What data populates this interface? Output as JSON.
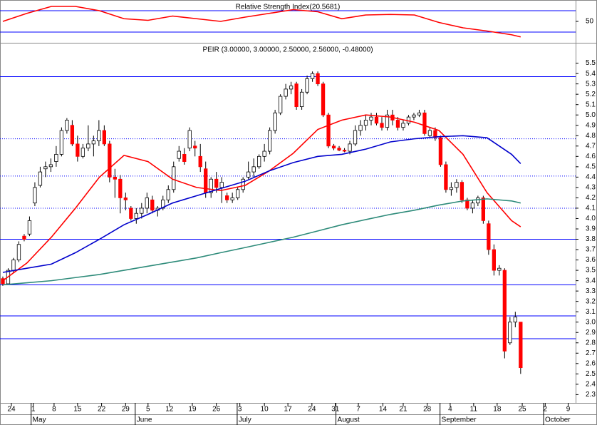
{
  "chart_data": [
    {
      "type": "line",
      "title": "Relative Strength Index(20.5681)",
      "xlim": [
        -0.53,
        107.3
      ],
      "ylim": [
        10,
        90
      ],
      "yticks": [
        50
      ],
      "hlines": [
        {
          "value": 70,
          "style": "solid",
          "color": "#0000ff"
        },
        {
          "value": 30,
          "style": "solid",
          "color": "#0000ff"
        }
      ],
      "series": [
        {
          "color": "#ff0000",
          "x": [
            0,
            4.5,
            9.1,
            13.6,
            18.1,
            22.7,
            27.2,
            31.8,
            36.3,
            40.8,
            45.4,
            49.9,
            54.4,
            59.0,
            63.5,
            68.0,
            72.6,
            77.1,
            81.7,
            86.2,
            90.7,
            95.3,
            97.0
          ],
          "values": [
            50,
            65,
            78,
            78,
            70,
            55,
            52,
            60,
            55,
            50,
            58,
            65,
            72,
            68,
            55,
            62,
            63,
            62,
            48,
            38,
            32,
            25,
            21
          ]
        }
      ]
    },
    {
      "type": "candlestick",
      "title": "PEIR (3.00000, 3.00000, 2.50000, 2.56000, -0.48000)",
      "up_color": "#ffffff",
      "down_color": "#ff0000",
      "xlim": [
        -0.53,
        107.3
      ],
      "ylim": [
        2.22,
        5.69
      ],
      "yticks": [
        5.5,
        5.4,
        5.3,
        5.2,
        5.1,
        {
          "value": 5.0,
          "label": "5.0"
        },
        4.9,
        4.8,
        4.7,
        4.6,
        4.5,
        4.4,
        4.3,
        4.2,
        4.1,
        {
          "value": 4.0,
          "label": "4.0"
        },
        3.9,
        3.8,
        3.7,
        3.6,
        3.5,
        3.4,
        3.3,
        3.2,
        3.1,
        {
          "value": 3.0,
          "label": "3.0"
        },
        2.9,
        2.8,
        2.7,
        2.6,
        2.5,
        2.4,
        2.3
      ],
      "xticks": [
        {
          "value": 1.6,
          "label": "24"
        },
        {
          "value": 5.7,
          "label": "1"
        },
        {
          "value": 9.6,
          "label": "8"
        },
        {
          "value": 14.0,
          "label": "15"
        },
        {
          "value": 18.5,
          "label": "22"
        },
        {
          "value": 23.0,
          "label": "29"
        },
        {
          "value": 27.2,
          "label": "5"
        },
        {
          "value": 31.2,
          "label": "12"
        },
        {
          "value": 35.5,
          "label": "19"
        },
        {
          "value": 40.0,
          "label": "26"
        },
        {
          "value": 44.4,
          "label": "3"
        },
        {
          "value": 49.0,
          "label": "10"
        },
        {
          "value": 53.4,
          "label": "17"
        },
        {
          "value": 57.9,
          "label": "24"
        },
        {
          "value": 62.3,
          "label": "31"
        },
        {
          "value": 66.6,
          "label": "7"
        },
        {
          "value": 71.2,
          "label": "14"
        },
        {
          "value": 75.0,
          "label": "21"
        },
        {
          "value": 79.5,
          "label": "28"
        },
        {
          "value": 83.8,
          "label": "4"
        },
        {
          "value": 88.2,
          "label": "11"
        },
        {
          "value": 92.6,
          "label": "18"
        },
        {
          "value": 97.3,
          "label": "25"
        },
        {
          "value": 101.6,
          "label": "2"
        },
        {
          "value": 105.9,
          "label": "9"
        }
      ],
      "months": [
        {
          "value": 5.3,
          "label": "May"
        },
        {
          "value": 24.8,
          "label": "June"
        },
        {
          "value": 43.9,
          "label": "July"
        },
        {
          "value": 62.4,
          "label": "August"
        },
        {
          "value": 81.9,
          "label": "September"
        },
        {
          "value": 101.3,
          "label": "October"
        }
      ],
      "hlines": [
        {
          "value": 5.37,
          "style": "solid",
          "color": "#0000ff"
        },
        {
          "value": 4.77,
          "style": "dotted",
          "color": "#0000ff"
        },
        {
          "value": 4.41,
          "style": "dotted",
          "color": "#0000ff"
        },
        {
          "value": 4.1,
          "style": "dotted",
          "color": "#0000ff"
        },
        {
          "value": 3.8,
          "style": "solid",
          "color": "#0000ff"
        },
        {
          "value": 3.36,
          "style": "solid",
          "color": "#0000ff"
        },
        {
          "value": 3.06,
          "style": "solid",
          "color": "#0000ff"
        },
        {
          "value": 2.84,
          "style": "solid",
          "color": "#0000ff"
        }
      ],
      "ohlc": [
        [
          3.42,
          3.44,
          3.35,
          3.37
        ],
        [
          3.37,
          3.52,
          3.36,
          3.5
        ],
        [
          3.5,
          3.62,
          3.48,
          3.6
        ],
        [
          3.6,
          3.78,
          3.58,
          3.75
        ],
        [
          3.83,
          3.85,
          3.78,
          3.8
        ],
        [
          3.85,
          4.02,
          3.83,
          3.98
        ],
        [
          4.15,
          4.35,
          4.12,
          4.3
        ],
        [
          4.32,
          4.5,
          4.3,
          4.45
        ],
        [
          4.48,
          4.55,
          4.4,
          4.5
        ],
        [
          4.5,
          4.58,
          4.45,
          4.52
        ],
        [
          4.55,
          4.7,
          4.5,
          4.62
        ],
        [
          4.62,
          4.88,
          4.6,
          4.85
        ],
        [
          4.85,
          4.97,
          4.82,
          4.95
        ],
        [
          4.9,
          4.95,
          4.7,
          4.72
        ],
        [
          4.72,
          4.8,
          4.55,
          4.6
        ],
        [
          4.6,
          4.72,
          4.58,
          4.68
        ],
        [
          4.68,
          4.9,
          4.65,
          4.72
        ],
        [
          4.72,
          4.8,
          4.6,
          4.75
        ],
        [
          4.75,
          4.95,
          4.7,
          4.85
        ],
        [
          4.85,
          4.9,
          4.7,
          4.72
        ],
        [
          4.72,
          4.75,
          4.35,
          4.4
        ],
        [
          4.4,
          4.48,
          4.2,
          4.38
        ],
        [
          4.38,
          4.42,
          4.05,
          4.2
        ],
        [
          4.2,
          4.25,
          4.08,
          4.18
        ],
        [
          4.1,
          4.12,
          3.98,
          4.0
        ],
        [
          4.0,
          4.1,
          3.95,
          4.05
        ],
        [
          4.05,
          4.15,
          4.0,
          4.1
        ],
        [
          4.1,
          4.25,
          4.05,
          4.2
        ],
        [
          4.18,
          4.22,
          4.05,
          4.08
        ],
        [
          4.08,
          4.12,
          4.02,
          4.1
        ],
        [
          4.1,
          4.22,
          4.08,
          4.18
        ],
        [
          4.18,
          4.32,
          4.15,
          4.28
        ],
        [
          4.28,
          4.55,
          4.25,
          4.5
        ],
        [
          4.58,
          4.7,
          4.55,
          4.65
        ],
        [
          4.62,
          4.68,
          4.52,
          4.55
        ],
        [
          4.68,
          4.88,
          4.65,
          4.85
        ],
        [
          4.7,
          4.75,
          4.6,
          4.68
        ],
        [
          4.6,
          4.72,
          4.45,
          4.5
        ],
        [
          4.48,
          4.55,
          4.2,
          4.25
        ],
        [
          4.25,
          4.4,
          4.2,
          4.38
        ],
        [
          4.38,
          4.45,
          4.25,
          4.3
        ],
        [
          4.3,
          4.4,
          4.15,
          4.35
        ],
        [
          4.22,
          4.25,
          4.15,
          4.18
        ],
        [
          4.18,
          4.25,
          4.15,
          4.2
        ],
        [
          4.2,
          4.3,
          4.18,
          4.28
        ],
        [
          4.28,
          4.4,
          4.25,
          4.38
        ],
        [
          4.4,
          4.55,
          4.38,
          4.45
        ],
        [
          4.45,
          4.58,
          4.4,
          4.5
        ],
        [
          4.5,
          4.62,
          4.48,
          4.6
        ],
        [
          4.6,
          4.72,
          4.55,
          4.65
        ],
        [
          4.65,
          4.88,
          4.62,
          4.85
        ],
        [
          4.85,
          5.05,
          4.82,
          5.02
        ],
        [
          5.02,
          5.2,
          5.0,
          5.18
        ],
        [
          5.18,
          5.3,
          5.15,
          5.25
        ],
        [
          5.25,
          5.32,
          5.2,
          5.28
        ],
        [
          5.3,
          5.32,
          5.05,
          5.08
        ],
        [
          5.08,
          5.25,
          5.05,
          5.22
        ],
        [
          5.22,
          5.38,
          5.2,
          5.35
        ],
        [
          5.35,
          5.42,
          5.32,
          5.4
        ],
        [
          5.4,
          5.42,
          5.28,
          5.3
        ],
        [
          5.3,
          5.32,
          4.98,
          5.0
        ],
        [
          5.0,
          5.02,
          4.68,
          4.7
        ],
        [
          4.7,
          4.72,
          4.66,
          4.68
        ],
        [
          4.68,
          4.7,
          4.65,
          4.66
        ],
        [
          4.66,
          4.68,
          4.64,
          4.65
        ],
        [
          4.65,
          4.75,
          4.62,
          4.72
        ],
        [
          4.72,
          4.9,
          4.7,
          4.85
        ],
        [
          4.85,
          4.95,
          4.8,
          4.9
        ],
        [
          4.9,
          5.0,
          4.85,
          4.95
        ],
        [
          4.95,
          5.02,
          4.9,
          4.98
        ],
        [
          4.98,
          5.02,
          4.9,
          4.92
        ],
        [
          4.92,
          4.98,
          4.85,
          4.88
        ],
        [
          4.88,
          5.05,
          4.85,
          5.0
        ],
        [
          5.0,
          5.05,
          4.9,
          4.95
        ],
        [
          4.95,
          4.98,
          4.85,
          4.88
        ],
        [
          4.88,
          4.95,
          4.85,
          4.92
        ],
        [
          4.92,
          5.0,
          4.9,
          4.98
        ],
        [
          4.98,
          5.02,
          4.95,
          5.0
        ],
        [
          5.0,
          5.05,
          4.98,
          5.02
        ],
        [
          5.02,
          5.05,
          4.8,
          4.82
        ],
        [
          4.8,
          4.88,
          4.78,
          4.85
        ],
        [
          4.85,
          4.88,
          4.75,
          4.78
        ],
        [
          4.78,
          4.8,
          4.5,
          4.52
        ],
        [
          4.52,
          4.55,
          4.25,
          4.28
        ],
        [
          4.28,
          4.35,
          4.22,
          4.3
        ],
        [
          4.3,
          4.38,
          4.25,
          4.35
        ],
        [
          4.35,
          4.37,
          4.15,
          4.18
        ],
        [
          4.18,
          4.2,
          4.08,
          4.1
        ],
        [
          4.1,
          4.18,
          4.05,
          4.15
        ],
        [
          4.15,
          4.22,
          4.12,
          4.2
        ],
        [
          4.2,
          4.22,
          3.95,
          3.98
        ],
        [
          3.95,
          3.98,
          3.65,
          3.7
        ],
        [
          3.7,
          3.75,
          3.45,
          3.5
        ],
        [
          3.5,
          3.55,
          3.45,
          3.52
        ],
        [
          3.5,
          3.52,
          2.65,
          2.72
        ],
        [
          2.8,
          3.05,
          2.78,
          3.0
        ],
        [
          3.0,
          3.1,
          2.95,
          3.05
        ],
        [
          3.0,
          3.0,
          2.5,
          2.56
        ]
      ],
      "series": [
        {
          "color": "#ff0000",
          "x": [
            0,
            4.5,
            9.1,
            13.6,
            18.1,
            22.7,
            27.2,
            31.8,
            36.3,
            40.8,
            45.4,
            49.9,
            54.4,
            59.0,
            63.5,
            68.0,
            72.6,
            77.1,
            81.7,
            86.2,
            90.7,
            95.3,
            97.0
          ],
          "values": [
            3.4,
            3.57,
            3.82,
            4.1,
            4.4,
            4.61,
            4.55,
            4.38,
            4.3,
            4.27,
            4.32,
            4.46,
            4.63,
            4.86,
            4.95,
            5.0,
            4.98,
            4.93,
            4.85,
            4.62,
            4.25,
            3.98,
            3.92
          ]
        },
        {
          "color": "#0000cc",
          "x": [
            0,
            4.5,
            9.1,
            13.6,
            18.1,
            22.7,
            27.2,
            31.8,
            36.3,
            40.8,
            45.4,
            49.9,
            54.4,
            59.0,
            63.5,
            68.0,
            72.6,
            77.1,
            81.7,
            86.2,
            90.7,
            95.3,
            97.0
          ],
          "values": [
            3.48,
            3.52,
            3.56,
            3.67,
            3.8,
            3.94,
            4.04,
            4.15,
            4.22,
            4.29,
            4.36,
            4.46,
            4.54,
            4.6,
            4.62,
            4.67,
            4.74,
            4.77,
            4.79,
            4.8,
            4.78,
            4.62,
            4.53
          ]
        },
        {
          "color": "#2e8b7a",
          "x": [
            0,
            4.5,
            9.1,
            13.6,
            18.1,
            22.7,
            27.2,
            31.8,
            36.3,
            40.8,
            45.4,
            49.9,
            54.4,
            59.0,
            63.5,
            68.0,
            72.6,
            77.1,
            81.7,
            86.2,
            90.7,
            95.3,
            97.0
          ],
          "values": [
            3.36,
            3.38,
            3.4,
            3.43,
            3.46,
            3.5,
            3.54,
            3.58,
            3.62,
            3.67,
            3.72,
            3.77,
            3.82,
            3.88,
            3.94,
            3.99,
            4.04,
            4.08,
            4.13,
            4.17,
            4.19,
            4.17,
            4.15
          ]
        }
      ]
    }
  ]
}
